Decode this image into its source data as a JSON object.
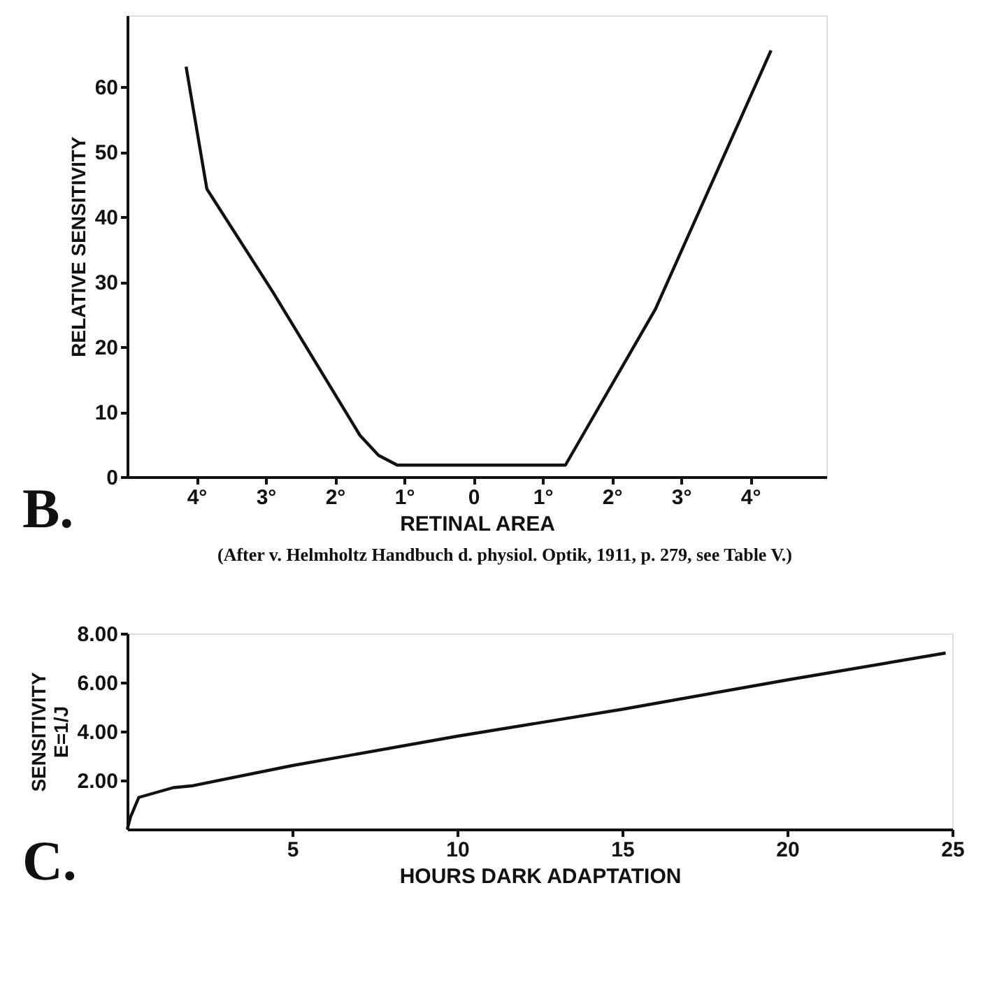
{
  "chart_data": [
    {
      "type": "line",
      "xlabel": "RETINAL AREA",
      "ylabel": "RELATIVE SENSITIVITY",
      "xlim": [
        -5,
        5.1
      ],
      "ylim": [
        0,
        71
      ],
      "xticks": [
        {
          "value": -4,
          "label": "4°"
        },
        {
          "value": -3,
          "label": "3°"
        },
        {
          "value": -2,
          "label": "2°"
        },
        {
          "value": -1,
          "label": "1°"
        },
        0,
        {
          "value": 1,
          "label": "1°"
        },
        {
          "value": 2,
          "label": "2°"
        },
        {
          "value": 3,
          "label": "3°"
        },
        {
          "value": 4,
          "label": "4°"
        }
      ],
      "yticks": [
        0,
        10,
        20,
        30,
        40,
        50,
        60
      ],
      "series": [
        {
          "color": "#111111",
          "x": [
            -4.15,
            -3.85,
            -2.9,
            -1.64,
            -1.37,
            -1.1,
            1.33,
            2.63,
            4.3
          ],
          "values": [
            63.1,
            44.3,
            28.5,
            6.4,
            3.3,
            1.8,
            1.8,
            25.8,
            65.6
          ]
        }
      ],
      "annotations": [
        "B.",
        "(After v. Helmholtz Handbuch d. physiol. Optik, 1911, p. 279, see Table V.)"
      ]
    },
    {
      "type": "line",
      "xlabel": "HOURS   DARK   ADAPTATION",
      "ylabel": "SENSITIVITY\nE=1/J",
      "xlim": [
        0,
        25
      ],
      "ylim": [
        0,
        8
      ],
      "xticks": [
        5,
        10,
        15,
        20,
        25
      ],
      "yticks": [
        {
          "value": 2,
          "label": "2.00"
        },
        {
          "value": 4,
          "label": "4.00"
        },
        {
          "value": 6,
          "label": "6.00"
        },
        {
          "value": 8,
          "label": "8.00"
        }
      ],
      "series": [
        {
          "color": "#111111",
          "x": [
            0,
            0.1,
            0.35,
            1.4,
            2.0,
            5,
            10,
            15,
            20,
            24.8
          ],
          "values": [
            0,
            0.5,
            1.3,
            1.7,
            1.78,
            2.6,
            3.8,
            4.9,
            6.1,
            7.2
          ]
        }
      ],
      "annotations": [
        "C."
      ]
    }
  ]
}
